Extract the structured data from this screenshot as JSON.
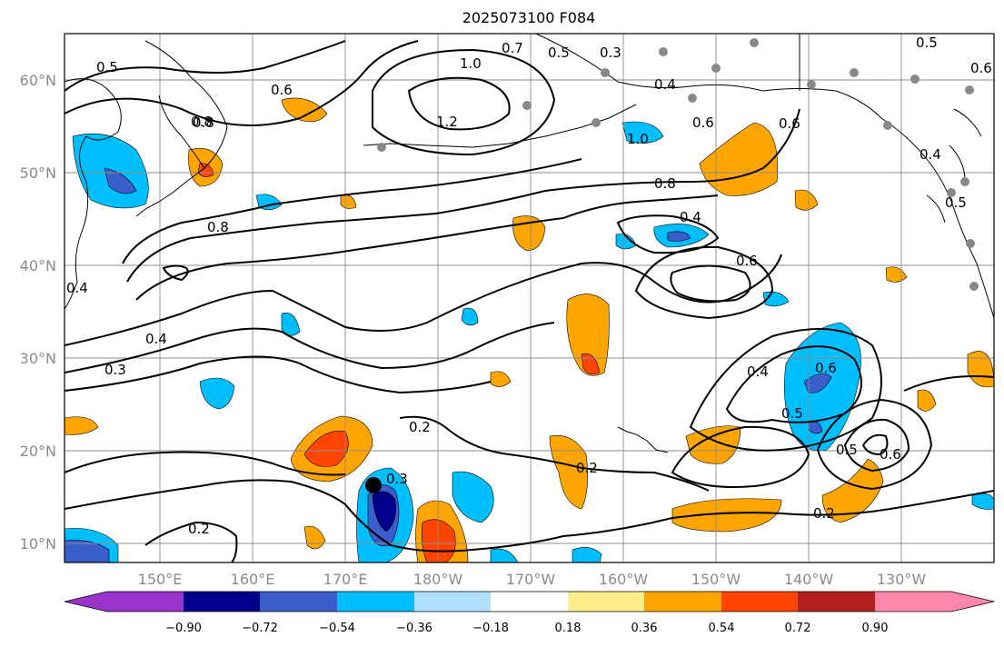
{
  "title": "2025073100 F084",
  "lat_ticks": [
    "10°N",
    "20°N",
    "30°N",
    "40°N",
    "50°N",
    "60°N"
  ],
  "lon_ticks": [
    "150°E",
    "160°E",
    "170°E",
    "180°W",
    "170°W",
    "160°W",
    "150°W",
    "140°W",
    "130°W"
  ],
  "colorbar": {
    "colors": [
      "#9933cc",
      "#00008b",
      "#3a5fcd",
      "#00bfff",
      "#b0e0ff",
      "#ffffff",
      "#ffec8b",
      "#ffa500",
      "#ff4500",
      "#b22222",
      "#ff88aa"
    ],
    "labels": [
      "−0.90",
      "−0.72",
      "−0.54",
      "−0.36",
      "−0.18",
      "0.18",
      "0.36",
      "0.54",
      "0.72",
      "0.90"
    ]
  },
  "contour_labels": [
    {
      "text": "0.5"
    },
    {
      "text": "0.7"
    },
    {
      "text": "0.5"
    },
    {
      "text": "0.3"
    },
    {
      "text": "0.5"
    },
    {
      "text": "0.6"
    },
    {
      "text": "1.0"
    },
    {
      "text": "1.2"
    },
    {
      "text": "0.8"
    },
    {
      "text": "0.4"
    },
    {
      "text": "0.6"
    },
    {
      "text": "1.0"
    },
    {
      "text": "0.6"
    },
    {
      "text": "0.8"
    },
    {
      "text": "0.8"
    },
    {
      "text": "0.4"
    },
    {
      "text": "0.6"
    },
    {
      "text": "0.4"
    },
    {
      "text": "0.3"
    },
    {
      "text": "0.4"
    },
    {
      "text": "0.6"
    },
    {
      "text": "0.5"
    },
    {
      "text": "0.5"
    },
    {
      "text": "0.6"
    },
    {
      "text": "0.2"
    },
    {
      "text": "0.2"
    },
    {
      "text": "0.2"
    },
    {
      "text": "0.2"
    },
    {
      "text": "0.3"
    },
    {
      "text": "0.6"
    },
    {
      "text": "0.8"
    },
    {
      "text": "0.4"
    },
    {
      "text": "0.5"
    },
    {
      "text": "0.4"
    }
  ]
}
